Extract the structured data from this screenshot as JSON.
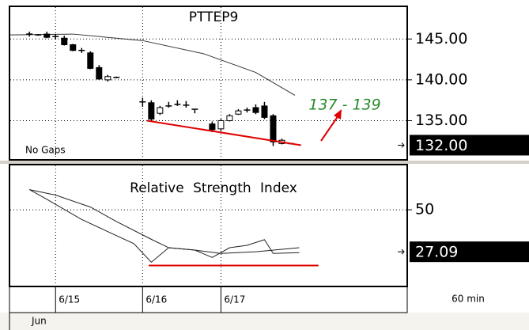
{
  "chart_data": [
    {
      "type": "candlestick",
      "title": "PTTEP9",
      "note": "No Gaps",
      "annotation": "137 - 139",
      "x": [
        0,
        1,
        2,
        3,
        4,
        5,
        6,
        7,
        8,
        9,
        10,
        13,
        14,
        15,
        16,
        17,
        18,
        19,
        21,
        22,
        23,
        24,
        25,
        26,
        27,
        28,
        29,
        30
      ],
      "open": [
        145.6,
        145.5,
        145.6,
        145.3,
        145.1,
        144.3,
        143.6,
        143.3,
        141.5,
        140.0,
        140.3,
        137.3,
        137.2,
        135.9,
        136.8,
        137.0,
        136.9,
        136.4,
        134.6,
        134.0,
        135.0,
        135.8,
        136.3,
        136.6,
        136.8,
        135.6,
        132.2,
        132.2
      ],
      "high": [
        145.9,
        145.6,
        145.9,
        145.6,
        145.4,
        144.4,
        143.9,
        143.5,
        141.8,
        140.6,
        140.4,
        137.8,
        137.5,
        136.8,
        137.3,
        137.5,
        137.4,
        136.4,
        134.9,
        135.2,
        135.8,
        136.4,
        136.6,
        137.0,
        137.3,
        135.8,
        132.8,
        132.3
      ],
      "low": [
        145.3,
        145.4,
        145.1,
        145.0,
        144.2,
        143.5,
        143.3,
        141.3,
        140.0,
        139.8,
        140.2,
        136.7,
        135.0,
        135.7,
        136.6,
        136.8,
        136.6,
        135.9,
        133.6,
        133.8,
        134.9,
        135.7,
        136.0,
        135.8,
        135.2,
        131.9,
        132.1,
        132.1
      ],
      "close": [
        145.5,
        145.5,
        145.2,
        145.3,
        144.3,
        143.6,
        143.6,
        141.4,
        140.1,
        140.4,
        140.3,
        137.4,
        135.2,
        136.6,
        136.8,
        137.0,
        136.9,
        136.4,
        133.9,
        135.0,
        135.6,
        136.2,
        136.3,
        136.0,
        135.4,
        132.4,
        132.6,
        132.2
      ],
      "overlays": [
        {
          "x": [
            -2.2,
            5,
            13,
            20,
            26,
            30.5
          ],
          "values": [
            145.5,
            145.6,
            144.8,
            143.2,
            140.9,
            138.1
          ],
          "color": "#333333"
        }
      ],
      "lines": [
        {
          "x": [
            13.5,
            31.2
          ],
          "values": [
            135,
            132
          ],
          "color": "#e00000"
        }
      ],
      "xlim": [
        -2.2,
        43.4
      ],
      "ylim": [
        130.3,
        148.9
      ],
      "yticks": [
        {
          "value": 135,
          "label": "135.00"
        },
        {
          "value": 140,
          "label": "140.00"
        },
        {
          "value": 145,
          "label": "145.00"
        }
      ],
      "xticks": [
        {
          "value": 3,
          "label": "6/15"
        },
        {
          "value": 13,
          "label": "6/16"
        },
        {
          "value": 22,
          "label": "6/17"
        }
      ],
      "last_value": 132,
      "last_label": "132.00",
      "grid": true
    },
    {
      "type": "line",
      "title": "Relative Strength Index",
      "series": [
        {
          "color": "#222222",
          "x": [
            0,
            2,
            6,
            9,
            12,
            14,
            16,
            19,
            21,
            23,
            25,
            27,
            28,
            31
          ],
          "values": [
            61,
            55.7,
            44.7,
            38.1,
            31.5,
            21.4,
            29.3,
            28,
            24,
            29.3,
            30.6,
            33.7,
            26.2,
            26.6
          ]
        },
        {
          "color": "#222222",
          "x": [
            0,
            3,
            7,
            10,
            14,
            16,
            19,
            22,
            26,
            31
          ],
          "values": [
            61,
            58,
            51.5,
            43.6,
            33.9,
            29.3,
            28,
            26.2,
            27.1,
            29.3
          ]
        }
      ],
      "lines": [
        {
          "x": [
            13.7,
            33.2
          ],
          "values": [
            19.6,
            19.6
          ],
          "color": "#e00000"
        }
      ],
      "xlim": [
        -2.2,
        43.4
      ],
      "ylim": [
        8.6,
        74.2
      ],
      "yticks": [
        50
      ],
      "last_value": 27.09,
      "last_label": "27.09",
      "grid": true
    }
  ],
  "month": "Jun",
  "interval": "60 min"
}
